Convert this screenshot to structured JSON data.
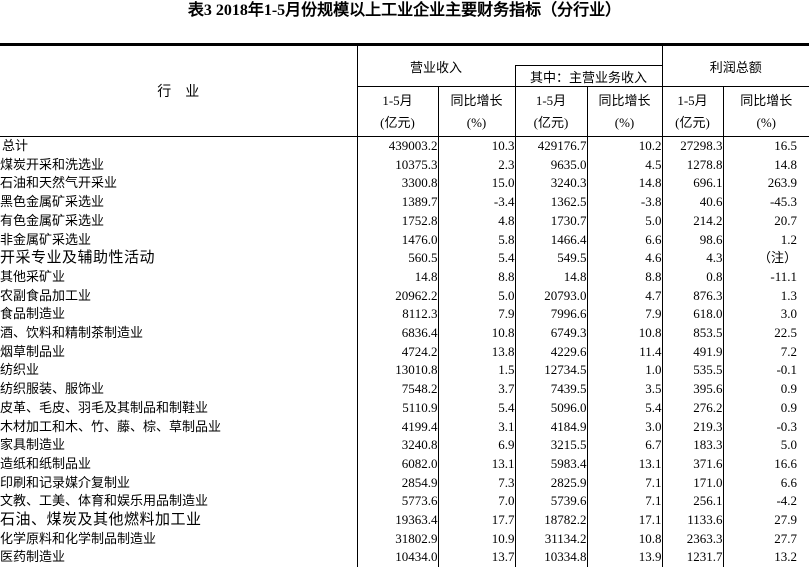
{
  "title": "表3 2018年1-5月份规模以上工业企业主要财务指标（分行业）",
  "colors": {
    "text": "#000000",
    "background": "#ffffff",
    "border": "#000000"
  },
  "table": {
    "industry_header": "行　业",
    "groups": {
      "revenue": "营业收入",
      "main_revenue": "其中：主营业务收入",
      "profit": "利润总额"
    },
    "subheaders": {
      "period": "1-5月",
      "period_unit": "(亿元)",
      "growth": "同比增长",
      "growth_unit": "(%)"
    },
    "rows": [
      {
        "industry": "总计",
        "indent": false,
        "alt_font": false,
        "values": [
          "439003.2",
          "10.3",
          "429176.7",
          "10.2",
          "27298.3",
          "16.5"
        ]
      },
      {
        "industry": "煤炭开采和洗选业",
        "indent": true,
        "alt_font": false,
        "values": [
          "10375.3",
          "2.3",
          "9635.0",
          "4.5",
          "1278.8",
          "14.8"
        ]
      },
      {
        "industry": "石油和天然气开采业",
        "indent": true,
        "alt_font": false,
        "values": [
          "3300.8",
          "15.0",
          "3240.3",
          "14.8",
          "696.1",
          "263.9"
        ]
      },
      {
        "industry": "黑色金属矿采选业",
        "indent": true,
        "alt_font": false,
        "values": [
          "1389.7",
          "-3.4",
          "1362.5",
          "-3.8",
          "40.6",
          "-45.3"
        ]
      },
      {
        "industry": "有色金属矿采选业",
        "indent": true,
        "alt_font": false,
        "values": [
          "1752.8",
          "4.8",
          "1730.7",
          "5.0",
          "214.2",
          "20.7"
        ]
      },
      {
        "industry": "非金属矿采选业",
        "indent": true,
        "alt_font": false,
        "values": [
          "1476.0",
          "5.8",
          "1466.4",
          "6.6",
          "98.6",
          "1.2"
        ]
      },
      {
        "industry": "开采专业及辅助性活动",
        "indent": true,
        "alt_font": true,
        "values": [
          "560.5",
          "5.4",
          "549.5",
          "4.6",
          "4.3",
          "（注）"
        ]
      },
      {
        "industry": "其他采矿业",
        "indent": true,
        "alt_font": false,
        "values": [
          "14.8",
          "8.8",
          "14.8",
          "8.8",
          "0.8",
          "-11.1"
        ]
      },
      {
        "industry": "农副食品加工业",
        "indent": true,
        "alt_font": false,
        "values": [
          "20962.2",
          "5.0",
          "20793.0",
          "4.7",
          "876.3",
          "1.3"
        ]
      },
      {
        "industry": "食品制造业",
        "indent": true,
        "alt_font": false,
        "values": [
          "8112.3",
          "7.9",
          "7996.6",
          "7.9",
          "618.0",
          "3.0"
        ]
      },
      {
        "industry": "酒、饮料和精制茶制造业",
        "indent": true,
        "alt_font": false,
        "values": [
          "6836.4",
          "10.8",
          "6749.3",
          "10.8",
          "853.5",
          "22.5"
        ]
      },
      {
        "industry": "烟草制品业",
        "indent": true,
        "alt_font": false,
        "values": [
          "4724.2",
          "13.8",
          "4229.6",
          "11.4",
          "491.9",
          "7.2"
        ]
      },
      {
        "industry": "纺织业",
        "indent": true,
        "alt_font": false,
        "values": [
          "13010.8",
          "1.5",
          "12734.5",
          "1.0",
          "535.5",
          "-0.1"
        ]
      },
      {
        "industry": "纺织服装、服饰业",
        "indent": true,
        "alt_font": false,
        "values": [
          "7548.2",
          "3.7",
          "7439.5",
          "3.5",
          "395.6",
          "0.9"
        ]
      },
      {
        "industry": "皮革、毛皮、羽毛及其制品和制鞋业",
        "indent": true,
        "alt_font": false,
        "values": [
          "5110.9",
          "5.4",
          "5096.0",
          "5.4",
          "276.2",
          "0.9"
        ]
      },
      {
        "industry": "木材加工和木、竹、藤、棕、草制品业",
        "indent": true,
        "alt_font": false,
        "values": [
          "4199.4",
          "3.1",
          "4184.9",
          "3.0",
          "219.3",
          "-0.3"
        ]
      },
      {
        "industry": "家具制造业",
        "indent": true,
        "alt_font": false,
        "values": [
          "3240.8",
          "6.9",
          "3215.5",
          "6.7",
          "183.3",
          "5.0"
        ]
      },
      {
        "industry": "造纸和纸制品业",
        "indent": true,
        "alt_font": false,
        "values": [
          "6082.0",
          "13.1",
          "5983.4",
          "13.1",
          "371.6",
          "16.6"
        ]
      },
      {
        "industry": "印刷和记录媒介复制业",
        "indent": true,
        "alt_font": false,
        "values": [
          "2854.9",
          "7.3",
          "2825.9",
          "7.1",
          "171.0",
          "6.6"
        ]
      },
      {
        "industry": "文教、工美、体育和娱乐用品制造业",
        "indent": true,
        "alt_font": false,
        "values": [
          "5773.6",
          "7.0",
          "5739.6",
          "7.1",
          "256.1",
          "-4.2"
        ]
      },
      {
        "industry": "石油、煤炭及其他燃料加工业",
        "indent": true,
        "alt_font": true,
        "values": [
          "19363.4",
          "17.7",
          "18782.2",
          "17.1",
          "1133.6",
          "27.9"
        ]
      },
      {
        "industry": "化学原料和化学制品制造业",
        "indent": true,
        "alt_font": false,
        "values": [
          "31802.9",
          "10.9",
          "31134.2",
          "10.8",
          "2363.3",
          "27.7"
        ]
      },
      {
        "industry": "医药制造业",
        "indent": true,
        "alt_font": false,
        "values": [
          "10434.0",
          "13.7",
          "10334.8",
          "13.9",
          "1231.7",
          "13.2"
        ]
      }
    ]
  }
}
